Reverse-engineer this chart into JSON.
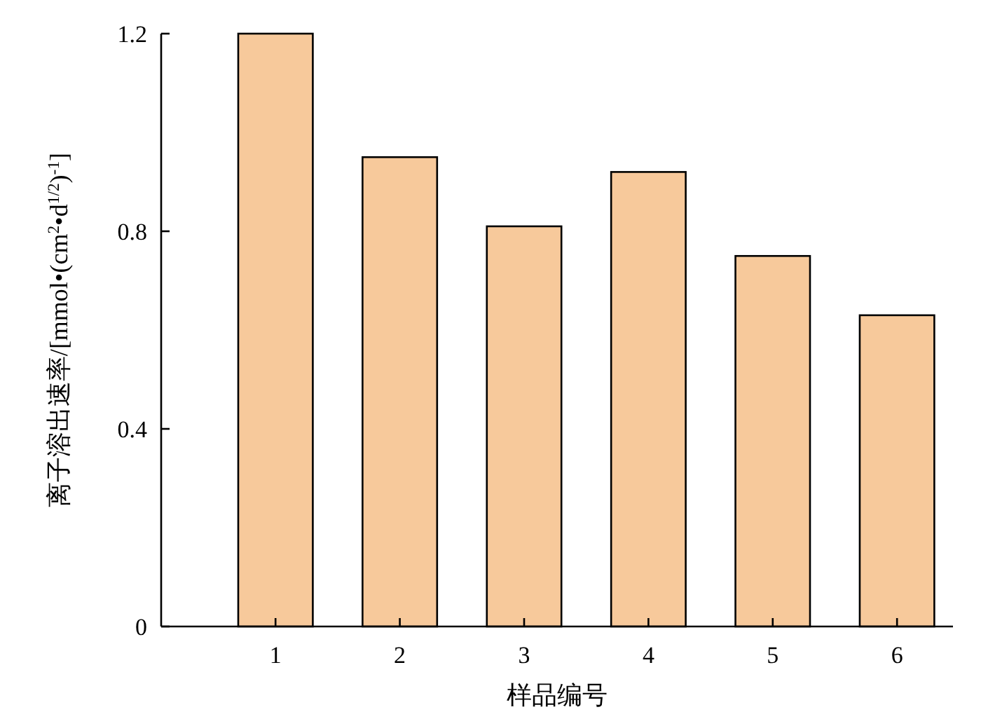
{
  "chart_data": {
    "type": "bar",
    "xlabel": "样品编号",
    "ylabel": "离子溶出速率/[mmol•(cm$^{2}$•d$^{1/2}$)$^{-1}$]",
    "categories": [
      "1",
      "2",
      "3",
      "4",
      "5",
      "6"
    ],
    "values": [
      1.2,
      0.95,
      0.81,
      0.92,
      0.75,
      0.63
    ],
    "color": "#f7c99b",
    "ylim": [
      0,
      1.2
    ],
    "yticks": [
      0,
      0.4,
      0.8,
      1.2
    ]
  }
}
